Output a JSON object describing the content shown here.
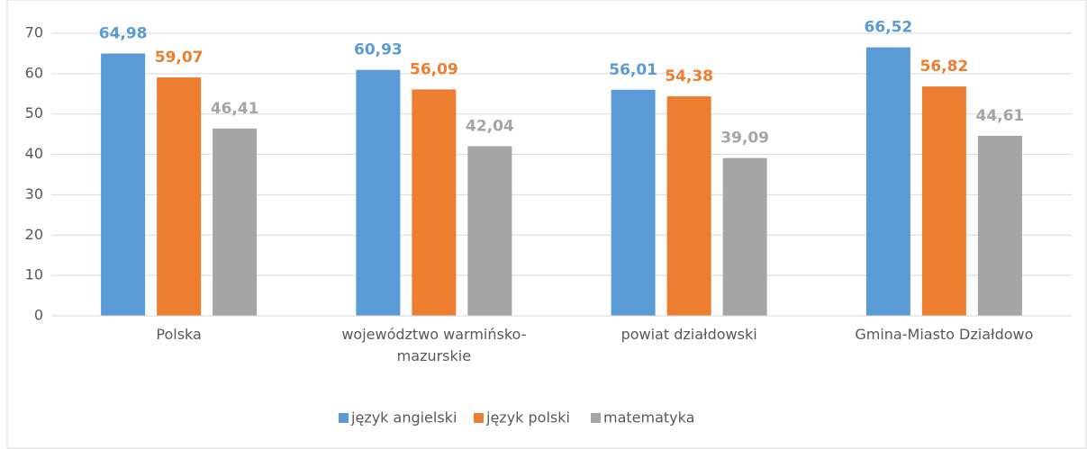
{
  "chart_data": {
    "type": "bar",
    "categories": [
      "Polska",
      "województwo warmińsko-mazurskie",
      "powiat działdowski",
      "Gmina-Miasto Działdowo"
    ],
    "series": [
      {
        "name": "język angielski",
        "color": "#5b9bd5",
        "values": [
          64.98,
          60.93,
          56.01,
          66.52
        ],
        "value_labels": [
          "64,98",
          "60,93",
          "56,01",
          "66,52"
        ]
      },
      {
        "name": "język polski",
        "color": "#ed7d31",
        "values": [
          59.07,
          56.09,
          54.38,
          56.82
        ],
        "value_labels": [
          "59,07",
          "56,09",
          "54,38",
          "56,82"
        ]
      },
      {
        "name": "matematyka",
        "color": "#a5a5a5",
        "values": [
          46.41,
          42.04,
          39.09,
          44.61
        ],
        "value_labels": [
          "46,41",
          "42,04",
          "39,09",
          "44,61"
        ]
      }
    ],
    "ylim": [
      0,
      70
    ],
    "yticks": [
      0,
      10,
      20,
      30,
      40,
      50,
      60,
      70
    ],
    "grid": true,
    "legend": "bottom"
  }
}
